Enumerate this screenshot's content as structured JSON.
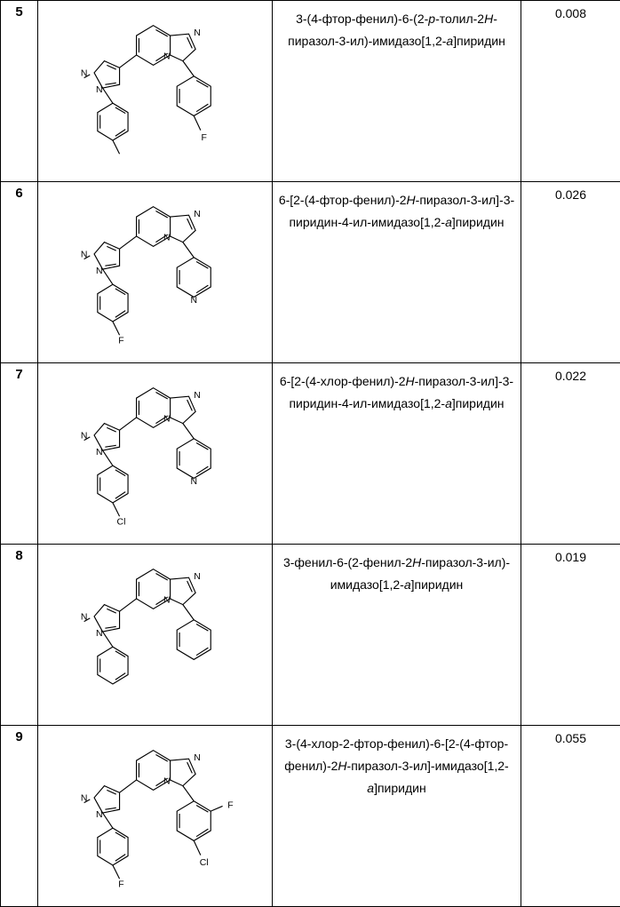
{
  "rows": [
    {
      "num": "5",
      "name_html": "3-(4-фтор-фенил)-6-(2-<span class='ital'>p</span>-толил-2<span class='ital'>H</span>-пиразол-3-ил)-имидазо[1,2-<span class='ital'>a</span>]пиридин",
      "value": "0.008",
      "subst_left": "CH3",
      "subst_right_meta": "",
      "subst_right_para": "F",
      "right_ring_N": false,
      "right_ortho_F": false
    },
    {
      "num": "6",
      "name_html": "6-[2-(4-фтор-фенил)-2<span class='ital'>H</span>-пиразол-3-ил]-3-пиридин-4-ил-имидазо[1,2-<span class='ital'>a</span>]пиридин",
      "value": "0.026",
      "subst_left": "F",
      "subst_right_meta": "",
      "subst_right_para": "",
      "right_ring_N": true,
      "right_ortho_F": false
    },
    {
      "num": "7",
      "name_html": "6-[2-(4-хлор-фенил)-2<span class='ital'>H</span>-пиразол-3-ил]-3-пиридин-4-ил-имидазо[1,2-<span class='ital'>a</span>]пиридин",
      "value": "0.022",
      "subst_left": "Cl",
      "subst_right_meta": "",
      "subst_right_para": "",
      "right_ring_N": true,
      "right_ortho_F": false
    },
    {
      "num": "8",
      "name_html": "3-фенил-6-(2-фенил-2<span class='ital'>H</span>-пиразол-3-ил)-имидазо[1,2-<span class='ital'>a</span>]пиридин",
      "value": "0.019",
      "subst_left": "",
      "subst_right_meta": "",
      "subst_right_para": "",
      "right_ring_N": false,
      "right_ortho_F": false
    },
    {
      "num": "9",
      "name_html": "3-(4-хлор-2-фтор-фенил)-6-[2-(4-фтор-фенил)-2<span class='ital'>H</span>-пиразол-3-ил]-имидазо[1,2-<span class='ital'>a</span>]пиридин",
      "value": "0.055",
      "subst_left": "F",
      "subst_right_meta": "",
      "subst_right_para": "Cl",
      "right_ring_N": false,
      "right_ortho_F": true
    }
  ]
}
